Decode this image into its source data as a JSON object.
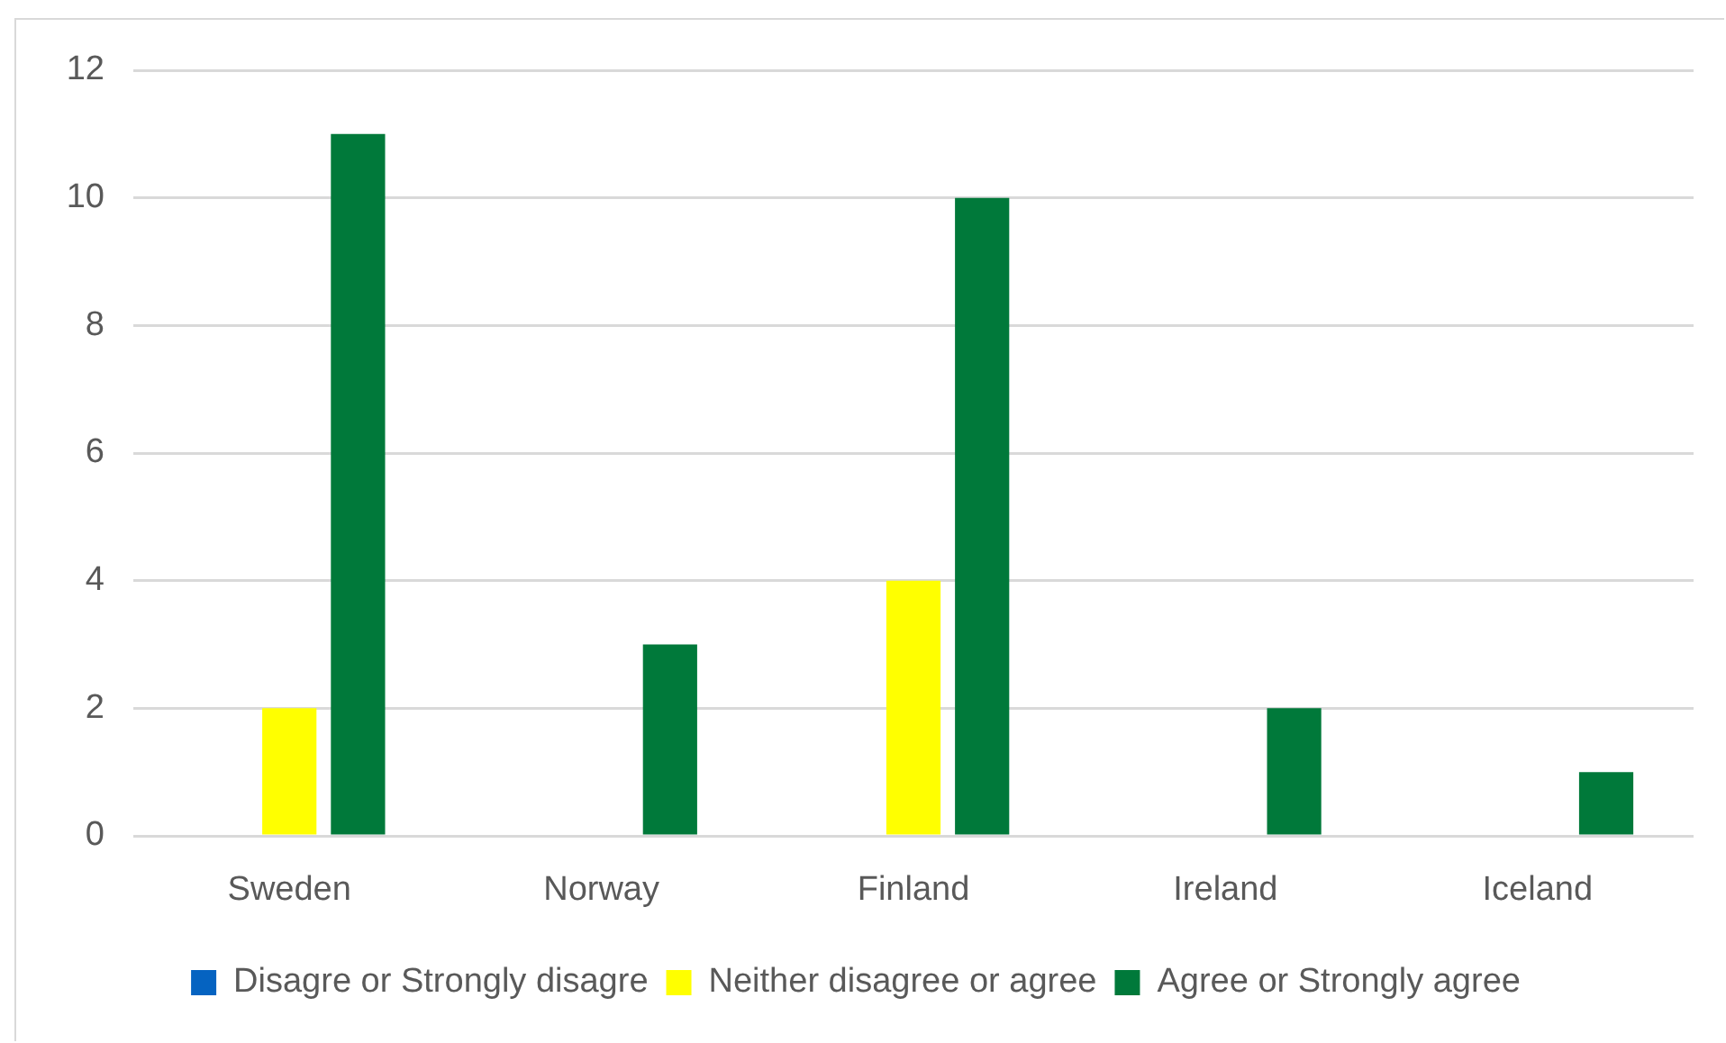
{
  "chart_data": {
    "type": "bar",
    "categories": [
      "Sweden",
      "Norway",
      "Finland",
      "Ireland",
      "Iceland"
    ],
    "series": [
      {
        "name": "Disagre or Strongly disagre",
        "color": "#0563c1",
        "values": [
          0,
          0,
          0,
          0,
          0
        ]
      },
      {
        "name": "Neither disagree or agree",
        "color": "#ffff00",
        "values": [
          2,
          0,
          4,
          0,
          0
        ]
      },
      {
        "name": "Agree or Strongly agree",
        "color": "#00793a",
        "values": [
          11,
          3,
          10,
          2,
          1
        ]
      }
    ],
    "ylim": [
      0,
      12
    ],
    "yticks": [
      0,
      2,
      4,
      6,
      8,
      10,
      12
    ],
    "grid": "y",
    "legend": "bottom"
  }
}
